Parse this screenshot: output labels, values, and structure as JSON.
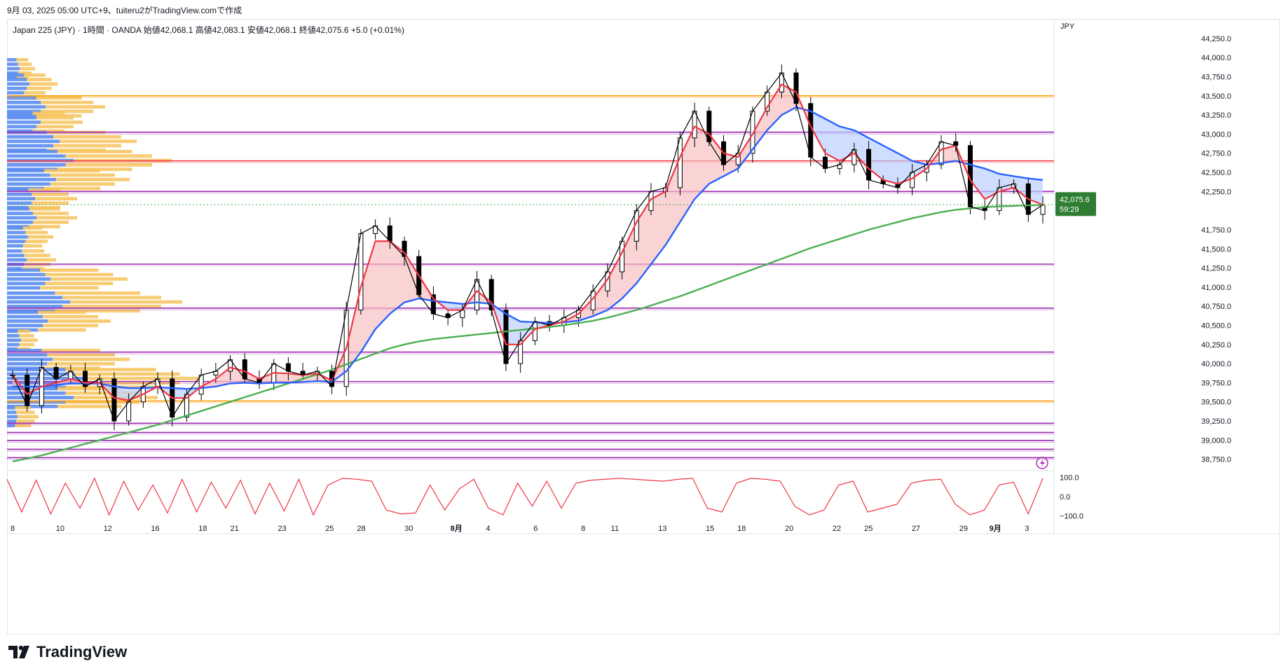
{
  "header": {
    "caption": "9月 03, 2025 05:00 UTC+9、tuiteru2がTradingView.comで作成"
  },
  "symbol_info": {
    "text": "Japan 225 (JPY) · 1時間 · OANDA  始値42,068.1  高値42,083.1  安値42,068.1  終値42,075.6  +5.0 (+0.01%)"
  },
  "currency_label": "JPY",
  "brand": {
    "name": "TradingView",
    "logo_icon": "tradingview-logo-icon"
  },
  "flash_icon": "lightning-icon",
  "colors": {
    "candle": "#000000",
    "ema_fast": "#f23645",
    "ema_slow": "#2962ff",
    "ma_long": "#4caf50",
    "fill_bull": "#f8c0c2",
    "fill_bear": "#bbd0ff",
    "vp_up": "#5b8def",
    "vp_down": "#f7c35c",
    "level_purple": "#9c27b0",
    "level_orange": "#ff9800",
    "level_red": "#f23645",
    "price_badge": "#2e7d32",
    "oscillator": "#f23645"
  },
  "chart_data": {
    "type": "line",
    "title": "Japan 225 (JPY) 1時間",
    "price_axis": {
      "ylim": [
        38600,
        44350
      ],
      "ticks": [
        44250,
        44000,
        43750,
        43500,
        43250,
        43000,
        42750,
        42500,
        42250,
        41750,
        41500,
        41250,
        41000,
        40750,
        40500,
        40250,
        40000,
        39750,
        39500,
        39250,
        39000,
        38750
      ],
      "tick_labels": [
        "44,250.0",
        "44,000.0",
        "43,750.0",
        "43,500.0",
        "43,250.0",
        "43,000.0",
        "42,750.0",
        "42,500.0",
        "42,250.0",
        "41,750.0",
        "41,500.0",
        "41,250.0",
        "41,000.0",
        "40,750.0",
        "40,500.0",
        "40,250.0",
        "40,000.0",
        "39,750.0",
        "39,500.0",
        "39,250.0",
        "39,000.0",
        "38,750.0"
      ],
      "current_price": 42075.6,
      "current_price_label": "42,075.6",
      "countdown_label": "59:29"
    },
    "x_axis": {
      "labels": [
        "8",
        "10",
        "12",
        "16",
        "18",
        "21",
        "23",
        "25",
        "28",
        "30",
        "8月",
        "4",
        "6",
        "8",
        "11",
        "13",
        "15",
        "18",
        "20",
        "22",
        "25",
        "27",
        "29",
        "9月",
        "3"
      ],
      "label_index": [
        0,
        3,
        6,
        9,
        12,
        14,
        17,
        20,
        22,
        25,
        28,
        30,
        33,
        36,
        38,
        41,
        44,
        46,
        49,
        52,
        54,
        57,
        60,
        62,
        64
      ]
    },
    "horizontal_levels": [
      {
        "price": 43500,
        "color": "#ff9800"
      },
      {
        "price": 43025,
        "color": "#9c27b0"
      },
      {
        "price": 42650,
        "color": "#f23645"
      },
      {
        "price": 42250,
        "color": "#9c27b0"
      },
      {
        "price": 41300,
        "color": "#9c27b0"
      },
      {
        "price": 40725,
        "color": "#9c27b0"
      },
      {
        "price": 40150,
        "color": "#9c27b0"
      },
      {
        "price": 39765,
        "color": "#9c27b0"
      },
      {
        "price": 39510,
        "color": "#ff9800"
      },
      {
        "price": 39220,
        "color": "#9c27b0"
      },
      {
        "price": 39100,
        "color": "#9c27b0"
      },
      {
        "price": 38995,
        "color": "#9c27b0"
      },
      {
        "price": 38880,
        "color": "#9c27b0"
      },
      {
        "price": 38770,
        "color": "#9c27b0"
      }
    ],
    "series": [
      {
        "name": "close",
        "values": [
          39850,
          39450,
          39950,
          39800,
          39900,
          39700,
          39800,
          39250,
          39500,
          39700,
          39800,
          39300,
          39600,
          39850,
          39900,
          40050,
          39800,
          39750,
          40000,
          39900,
          39850,
          39900,
          39700,
          40700,
          41700,
          41800,
          41600,
          41400,
          40900,
          40650,
          40600,
          40700,
          41100,
          40700,
          40000,
          40300,
          40550,
          40500,
          40600,
          40700,
          40950,
          41200,
          41600,
          42000,
          42250,
          42300,
          42950,
          43300,
          42900,
          42600,
          42750,
          43300,
          43550,
          43800,
          43400,
          42700,
          42550,
          42600,
          42800,
          42400,
          42350,
          42300,
          42500,
          42600,
          42900,
          42850,
          42050,
          42000,
          42300,
          42350,
          41950,
          42076
        ]
      },
      {
        "name": "ema_fast",
        "values": [
          39850,
          39600,
          39700,
          39750,
          39800,
          39750,
          39750,
          39550,
          39520,
          39600,
          39700,
          39550,
          39550,
          39700,
          39800,
          39950,
          39900,
          39800,
          39880,
          39870,
          39850,
          39870,
          39780,
          40200,
          41000,
          41600,
          41600,
          41450,
          41150,
          40850,
          40700,
          40700,
          40950,
          40800,
          40250,
          40250,
          40450,
          40500,
          40550,
          40650,
          40850,
          41100,
          41450,
          41850,
          42150,
          42250,
          42700,
          43100,
          43000,
          42750,
          42700,
          43000,
          43350,
          43650,
          43550,
          43100,
          42750,
          42650,
          42750,
          42550,
          42400,
          42350,
          42420,
          42550,
          42800,
          42850,
          42400,
          42150,
          42250,
          42300,
          42150,
          42076
        ]
      },
      {
        "name": "ema_slow",
        "values": [
          39700,
          39700,
          39700,
          39720,
          39740,
          39740,
          39740,
          39700,
          39680,
          39680,
          39690,
          39680,
          39670,
          39680,
          39700,
          39740,
          39750,
          39740,
          39750,
          39750,
          39760,
          39770,
          39760,
          39900,
          40150,
          40450,
          40650,
          40800,
          40850,
          40820,
          40800,
          40780,
          40800,
          40780,
          40650,
          40550,
          40540,
          40530,
          40540,
          40560,
          40620,
          40700,
          40850,
          41050,
          41300,
          41550,
          41850,
          42150,
          42350,
          42450,
          42550,
          42800,
          43050,
          43250,
          43350,
          43300,
          43200,
          43100,
          43050,
          42950,
          42850,
          42750,
          42650,
          42600,
          42620,
          42650,
          42600,
          42550,
          42480,
          42450,
          42420,
          42400
        ]
      },
      {
        "name": "ma_long",
        "values": [
          38720,
          38760,
          38800,
          38850,
          38900,
          38950,
          39000,
          39050,
          39100,
          39150,
          39200,
          39260,
          39320,
          39380,
          39440,
          39500,
          39560,
          39620,
          39680,
          39740,
          39800,
          39860,
          39920,
          39990,
          40060,
          40130,
          40200,
          40250,
          40290,
          40320,
          40340,
          40360,
          40380,
          40400,
          40420,
          40440,
          40460,
          40480,
          40500,
          40530,
          40560,
          40600,
          40650,
          40700,
          40760,
          40820,
          40880,
          40950,
          41020,
          41090,
          41160,
          41230,
          41300,
          41370,
          41440,
          41510,
          41570,
          41630,
          41690,
          41750,
          41800,
          41850,
          41900,
          41940,
          41980,
          42010,
          42030,
          42045,
          42055,
          42062,
          42068,
          42072
        ]
      }
    ],
    "volume_profile": [
      {
        "price": 43850,
        "up": 18,
        "down": 22
      },
      {
        "price": 43650,
        "up": 32,
        "down": 40
      },
      {
        "price": 43350,
        "up": 55,
        "down": 85
      },
      {
        "price": 43150,
        "up": 48,
        "down": 60
      },
      {
        "price": 42900,
        "up": 75,
        "down": 110
      },
      {
        "price": 42650,
        "up": 95,
        "down": 140
      },
      {
        "price": 42400,
        "up": 70,
        "down": 105
      },
      {
        "price": 42150,
        "up": 40,
        "down": 60
      },
      {
        "price": 41900,
        "up": 42,
        "down": 58
      },
      {
        "price": 41650,
        "up": 30,
        "down": 36
      },
      {
        "price": 41350,
        "up": 28,
        "down": 42
      },
      {
        "price": 41100,
        "up": 62,
        "down": 110
      },
      {
        "price": 40800,
        "up": 90,
        "down": 160
      },
      {
        "price": 40550,
        "up": 58,
        "down": 90
      },
      {
        "price": 40300,
        "up": 20,
        "down": 24
      },
      {
        "price": 40050,
        "up": 65,
        "down": 110
      },
      {
        "price": 39800,
        "up": 110,
        "down": 170
      },
      {
        "price": 39550,
        "up": 95,
        "down": 120
      },
      {
        "price": 39300,
        "up": 15,
        "down": 30
      }
    ],
    "oscillator": {
      "ylim": [
        -120,
        120
      ],
      "ticks": [
        100,
        0,
        -100
      ],
      "tick_labels": [
        "100.0",
        "0.0",
        "−100.0"
      ],
      "values": [
        90,
        -80,
        85,
        -90,
        70,
        -60,
        95,
        -95,
        80,
        -70,
        60,
        -85,
        90,
        -80,
        75,
        -60,
        85,
        -90,
        70,
        -75,
        90,
        -95,
        60,
        95,
        90,
        80,
        -70,
        -90,
        -85,
        60,
        -70,
        40,
        90,
        -60,
        -95,
        70,
        -50,
        80,
        -60,
        70,
        85,
        90,
        95,
        90,
        85,
        80,
        90,
        95,
        -60,
        -80,
        70,
        95,
        90,
        80,
        -50,
        -95,
        -70,
        60,
        80,
        -80,
        -60,
        -40,
        70,
        85,
        90,
        -40,
        -95,
        -70,
        60,
        75,
        -90,
        95
      ]
    }
  }
}
